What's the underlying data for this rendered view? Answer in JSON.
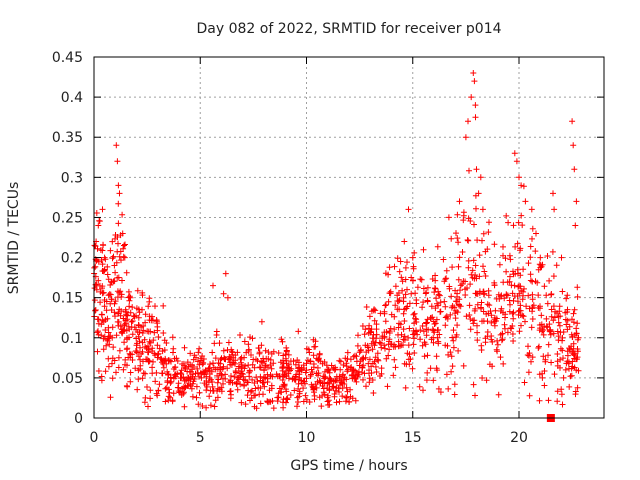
{
  "chart_data": {
    "type": "scatter",
    "title": "Day 082 of 2022, SRMTID for receiver p014",
    "xlabel": "GPS time / hours",
    "ylabel": "SRMTID / TECUs",
    "xlim": [
      0,
      24
    ],
    "ylim": [
      0,
      0.45
    ],
    "xticks": [
      0,
      5,
      10,
      15,
      20
    ],
    "yticks": [
      0,
      0.05,
      0.1,
      0.15,
      0.2,
      0.25,
      0.3,
      0.35,
      0.4,
      0.45
    ],
    "xtick_labels": [
      "0",
      "5",
      "10",
      "15",
      "20"
    ],
    "ytick_labels": [
      "0",
      "0.05",
      "0.1",
      "0.15",
      "0.2",
      "0.25",
      "0.3",
      "0.35",
      "0.4",
      "0.45"
    ],
    "grid": true,
    "marker_color": "#ff0000",
    "series": [
      {
        "name": "SRMTID",
        "profile": [
          [
            0.0,
            0.16,
            0.05
          ],
          [
            0.3,
            0.17,
            0.05
          ],
          [
            0.6,
            0.13,
            0.04
          ],
          [
            0.9,
            0.15,
            0.05
          ],
          [
            1.2,
            0.17,
            0.06
          ],
          [
            1.5,
            0.12,
            0.04
          ],
          [
            1.8,
            0.1,
            0.03
          ],
          [
            2.2,
            0.09,
            0.03
          ],
          [
            2.6,
            0.09,
            0.03
          ],
          [
            3.0,
            0.08,
            0.03
          ],
          [
            3.5,
            0.06,
            0.02
          ],
          [
            4.0,
            0.05,
            0.015
          ],
          [
            4.5,
            0.05,
            0.015
          ],
          [
            5.0,
            0.05,
            0.015
          ],
          [
            5.5,
            0.055,
            0.02
          ],
          [
            6.0,
            0.06,
            0.02
          ],
          [
            6.5,
            0.06,
            0.02
          ],
          [
            7.0,
            0.06,
            0.02
          ],
          [
            7.5,
            0.055,
            0.02
          ],
          [
            8.0,
            0.06,
            0.02
          ],
          [
            8.5,
            0.055,
            0.02
          ],
          [
            9.0,
            0.05,
            0.02
          ],
          [
            9.5,
            0.05,
            0.02
          ],
          [
            10.0,
            0.05,
            0.02
          ],
          [
            10.5,
            0.055,
            0.02
          ],
          [
            11.0,
            0.04,
            0.015
          ],
          [
            11.5,
            0.045,
            0.015
          ],
          [
            12.0,
            0.05,
            0.015
          ],
          [
            12.5,
            0.07,
            0.02
          ],
          [
            13.0,
            0.09,
            0.03
          ],
          [
            13.5,
            0.1,
            0.03
          ],
          [
            14.0,
            0.12,
            0.04
          ],
          [
            14.5,
            0.13,
            0.04
          ],
          [
            15.0,
            0.12,
            0.04
          ],
          [
            15.5,
            0.11,
            0.04
          ],
          [
            16.0,
            0.12,
            0.04
          ],
          [
            16.5,
            0.13,
            0.05
          ],
          [
            17.0,
            0.15,
            0.05
          ],
          [
            17.5,
            0.17,
            0.06
          ],
          [
            18.0,
            0.19,
            0.07
          ],
          [
            18.5,
            0.14,
            0.05
          ],
          [
            19.0,
            0.12,
            0.04
          ],
          [
            19.5,
            0.15,
            0.05
          ],
          [
            20.0,
            0.17,
            0.06
          ],
          [
            20.5,
            0.13,
            0.05
          ],
          [
            21.0,
            0.13,
            0.05
          ],
          [
            21.5,
            0.11,
            0.04
          ],
          [
            22.0,
            0.1,
            0.04
          ],
          [
            22.5,
            0.09,
            0.03
          ],
          [
            22.8,
            0.08,
            0.03
          ]
        ],
        "highlights": [
          [
            0.1,
            0.22
          ],
          [
            0.2,
            0.24
          ],
          [
            0.4,
            0.26
          ],
          [
            0.5,
            0.2
          ],
          [
            1.05,
            0.34
          ],
          [
            1.1,
            0.32
          ],
          [
            1.15,
            0.29
          ],
          [
            1.2,
            0.28
          ],
          [
            1.35,
            0.23
          ],
          [
            1.45,
            0.2
          ],
          [
            1.55,
            0.04
          ],
          [
            6.2,
            0.18
          ],
          [
            6.3,
            0.15
          ],
          [
            6.1,
            0.155
          ],
          [
            5.6,
            0.165
          ],
          [
            14.8,
            0.26
          ],
          [
            14.6,
            0.22
          ],
          [
            15.0,
            0.2
          ],
          [
            16.7,
            0.25
          ],
          [
            17.2,
            0.27
          ],
          [
            17.5,
            0.35
          ],
          [
            17.6,
            0.37
          ],
          [
            17.75,
            0.4
          ],
          [
            17.85,
            0.43
          ],
          [
            17.9,
            0.42
          ],
          [
            17.95,
            0.39
          ],
          [
            18.0,
            0.31
          ],
          [
            18.1,
            0.28
          ],
          [
            18.2,
            0.3
          ],
          [
            18.3,
            0.26
          ],
          [
            19.8,
            0.33
          ],
          [
            19.9,
            0.32
          ],
          [
            20.0,
            0.3
          ],
          [
            20.1,
            0.29
          ],
          [
            20.3,
            0.27
          ],
          [
            20.6,
            0.26
          ],
          [
            20.8,
            0.23
          ],
          [
            21.0,
            0.2
          ],
          [
            21.1,
            0.05
          ],
          [
            21.6,
            0.28
          ],
          [
            21.65,
            0.26
          ],
          [
            22.0,
            0.2
          ],
          [
            22.1,
            0.05
          ],
          [
            22.2,
            0.06
          ],
          [
            22.5,
            0.37
          ],
          [
            22.55,
            0.34
          ],
          [
            22.6,
            0.31
          ],
          [
            22.7,
            0.27
          ],
          [
            22.65,
            0.24
          ],
          [
            22.8,
            0.1
          ],
          [
            12.0,
            0.02
          ],
          [
            11.9,
            0.025
          ],
          [
            5.1,
            0.015
          ],
          [
            9.6,
            0.02
          ],
          [
            7.9,
            0.12
          ]
        ]
      }
    ],
    "markers": [
      {
        "name": "filled-square",
        "x": 21.5,
        "y": 0.0
      }
    ]
  }
}
